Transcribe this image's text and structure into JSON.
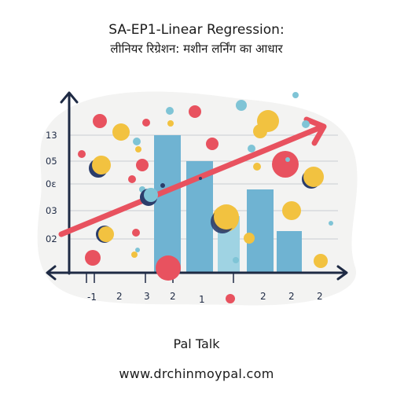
{
  "header": {
    "title": "SA-EP1-Linear Regression:",
    "subtitle": "लीनियर रिग्रेशन: मशीन लर्निंग का आधार"
  },
  "illustration": {
    "y_tick_labels": [
      "13",
      "05",
      "0ɛ",
      "03",
      "02"
    ],
    "x_tick_labels": [
      "-1",
      "2",
      "3",
      "2",
      "1",
      "2",
      "2",
      "2"
    ],
    "bar_levels": [
      0.86,
      0.73,
      0.38,
      0.55,
      0.27
    ],
    "colors": {
      "bar": "#6fb3d2",
      "bar_light": "#9fd3e3",
      "trend_arrow": "#e8525f",
      "dot_red": "#e8525f",
      "dot_yellow": "#f2c240",
      "dot_navy": "#2b3d6b",
      "dot_teal": "#7fc4d6",
      "axis": "#1e2a44",
      "blob": "#f3f3f2"
    }
  },
  "footer": {
    "brand": "Pal Talk",
    "website": "www.drchinmoypal.com"
  }
}
